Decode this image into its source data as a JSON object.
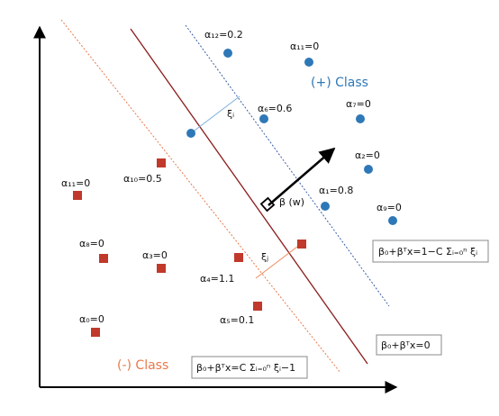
{
  "colors": {
    "positive": "#2e78b7",
    "negative": "#c0392b",
    "hyperplane": "#8b1a1a",
    "positive_margin": "#3b5fa8",
    "negative_margin": "#e8794a",
    "slack_pos": "#7fb0dc",
    "slack_neg": "#ef8a5e",
    "axis": "#000000"
  },
  "labels": {
    "pos_class": "(+) Class",
    "neg_class": "(-) Class",
    "beta": "β (w)",
    "xi_pos": "ξᵢ",
    "xi_neg": "ξⱼ"
  },
  "equations": {
    "hyperplane": "β₀+βᵀx=0",
    "positive_margin": "β₀+βᵀx=1−C Σᵢ₌₀ⁿ ξᵢ",
    "negative_margin": "β₀+βᵀx=C Σᵢ₌₀ⁿ ξᵢ−1"
  },
  "points": {
    "positive": [
      {
        "label": "α₁₂=0.2"
      },
      {
        "label": "α₁₁=0"
      },
      {
        "label": "α₆=0.6"
      },
      {
        "label": "α₇=0"
      },
      {
        "label": "α₂=0"
      },
      {
        "label": "α₁=0.8"
      },
      {
        "label": "α₉=0"
      },
      {
        "label": ""
      }
    ],
    "negative": [
      {
        "label": "α₁₀=0.5"
      },
      {
        "label": "α₁₁=0"
      },
      {
        "label": "α₈=0"
      },
      {
        "label": "α₃=0"
      },
      {
        "label": "α₄=1.1"
      },
      {
        "label": "α₀=0"
      },
      {
        "label": "α₅=0.1"
      },
      {
        "label": ""
      }
    ]
  }
}
